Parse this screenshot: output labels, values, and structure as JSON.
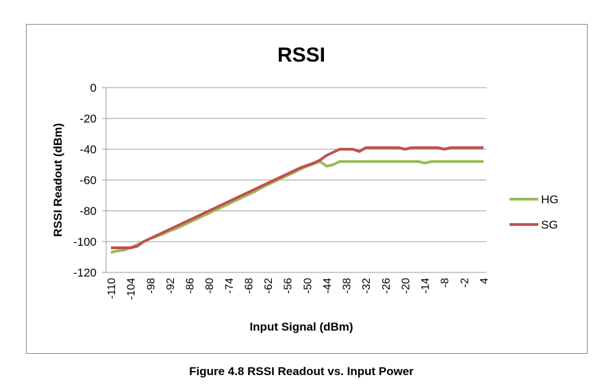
{
  "chart_data": {
    "type": "line",
    "title": "RSSI",
    "xlabel": "Input Signal (dBm)",
    "ylabel": "RSSI Readout (dBm)",
    "ylim": [
      -120,
      0
    ],
    "yticks": [
      0,
      -20,
      -40,
      -60,
      -80,
      -100,
      -120
    ],
    "xticks": [
      -110,
      -104,
      -98,
      -92,
      -86,
      -80,
      -74,
      -68,
      -62,
      -56,
      -50,
      -44,
      -38,
      -32,
      -26,
      -20,
      -14,
      -8,
      -2,
      4
    ],
    "xlim": [
      -110,
      4
    ],
    "grid": true,
    "legend": "right",
    "x": [
      -110,
      -108,
      -106,
      -104,
      -102,
      -100,
      -98,
      -96,
      -94,
      -92,
      -90,
      -88,
      -86,
      -84,
      -82,
      -80,
      -78,
      -76,
      -74,
      -72,
      -70,
      -68,
      -66,
      -64,
      -62,
      -60,
      -58,
      -56,
      -54,
      -52,
      -50,
      -48,
      -46,
      -44,
      -42,
      -40,
      -38,
      -36,
      -34,
      -32,
      -30,
      -28,
      -26,
      -24,
      -22,
      -20,
      -18,
      -16,
      -14,
      -12,
      -10,
      -8,
      -6,
      -4,
      -2,
      0,
      2,
      4
    ],
    "series": [
      {
        "name": "HG",
        "color": "#9bbb59",
        "values": [
          -107,
          -106,
          -105.5,
          -104,
          -102,
          -100,
          -98,
          -96.5,
          -95,
          -93,
          -91.5,
          -89.5,
          -87.5,
          -85.5,
          -83.5,
          -81.5,
          -79.5,
          -77.5,
          -75.5,
          -73.5,
          -71.5,
          -69.5,
          -67.5,
          -65,
          -63,
          -61,
          -59,
          -57,
          -55,
          -53,
          -51,
          -49.5,
          -48,
          -51,
          -50,
          -48,
          -48,
          -48,
          -48,
          -48,
          -48,
          -48,
          -48,
          -48,
          -48,
          -48,
          -48,
          -48,
          -49,
          -48,
          -48,
          -48,
          -48,
          -48,
          -48,
          -48,
          -48,
          -48
        ]
      },
      {
        "name": "SG",
        "color": "#c0504d",
        "values": [
          -104,
          -104,
          -104,
          -104,
          -103,
          -100,
          -98,
          -96,
          -94,
          -92,
          -90,
          -88,
          -86,
          -84,
          -82,
          -80,
          -78,
          -76,
          -74,
          -72,
          -70,
          -68,
          -66,
          -64,
          -62,
          -60,
          -58,
          -56,
          -54,
          -52,
          -50.5,
          -49,
          -47,
          -44,
          -42,
          -40,
          -40,
          -40,
          -41.5,
          -39,
          -39,
          -39,
          -39,
          -39,
          -39,
          -40,
          -39,
          -39,
          -39,
          -39,
          -39,
          -40,
          -39,
          -39,
          -39,
          -39,
          -39,
          -39
        ]
      }
    ]
  },
  "caption": "Figure 4.8 RSSI Readout vs. Input Power"
}
